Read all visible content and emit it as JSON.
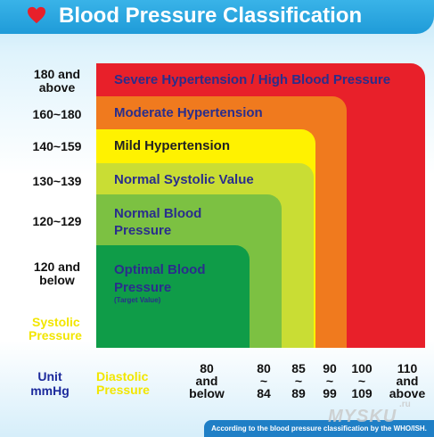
{
  "header": {
    "title": "Blood Pressure Classification",
    "icon": "heart-icon",
    "heart_color": "#e8202a",
    "banner_color": "#2aa6e0"
  },
  "chart_data": {
    "type": "table",
    "title": "Blood Pressure Classification",
    "ylabel": "Systolic Pressure",
    "xlabel": "Diastolic Pressure",
    "unit": "Unit mmHg",
    "systolic_ranges": [
      "180 and above",
      "160~180",
      "140~159",
      "130~139",
      "120~129",
      "120 and below"
    ],
    "diastolic_ranges": [
      "80 and below",
      "80 ~ 84",
      "85 ~ 89",
      "90 ~ 99",
      "100 ~ 109",
      "110 and above"
    ],
    "categories": [
      {
        "name": "Severe Hypertension / High Blood Pressure",
        "systolic": "180 and above",
        "diastolic": "110 and above",
        "color": "#e8202a"
      },
      {
        "name": "Moderate Hypertension",
        "systolic": "160~180",
        "diastolic": "100 ~ 109",
        "color": "#f07a1e"
      },
      {
        "name": "Mild Hypertension",
        "systolic": "140~159",
        "diastolic": "90 ~ 99",
        "color": "#fff200"
      },
      {
        "name": "Normal Systolic Value",
        "systolic": "130~139",
        "diastolic": "85 ~ 89",
        "color": "#c9dd34"
      },
      {
        "name": "Normal Blood Pressure",
        "systolic": "120~129",
        "diastolic": "80 ~ 84",
        "color": "#7cc142"
      },
      {
        "name": "Optimal Blood Pressure",
        "note": "(Target Value)",
        "systolic": "120 and below",
        "diastolic": "80 and below",
        "color": "#0f9c48"
      }
    ]
  },
  "labels": {
    "systolic_line1": "Systolic",
    "systolic_line2": "Pressure",
    "unit_line1": "Unit",
    "unit_line2": "mmHg",
    "diastolic_line1": "Diastolic",
    "diastolic_line2": "Pressure",
    "row_180_l1": "180 and",
    "row_180_l2": "above",
    "row_160": "160~180",
    "row_140": "140~159",
    "row_130": "130~139",
    "row_120": "120~129",
    "row_below_l1": "120 and",
    "row_below_l2": "below",
    "cat_severe": "Severe Hypertension / High Blood Pressure",
    "cat_moderate": "Moderate Hypertension",
    "cat_mild": "Mild Hypertension",
    "cat_normal_systolic": "Normal Systolic Value",
    "cat_normal_l1": "Normal Blood",
    "cat_normal_l2": "Pressure",
    "cat_optimal_l1": "Optimal Blood",
    "cat_optimal_l2": "Pressure",
    "cat_optimal_note": "(Target Value)",
    "xt1": "80\nand\nbelow",
    "xt2": "80\n~\n84",
    "xt3": "85\n~\n89",
    "xt4": "90\n~\n99",
    "xt5": "100\n~\n109",
    "xt6": "110\nand\nabove"
  },
  "footer": {
    "text": "According to the blood pressure classification by the WHO/ISH."
  },
  "watermark": {
    "text": "MYSKU",
    "suffix": ".ru"
  }
}
